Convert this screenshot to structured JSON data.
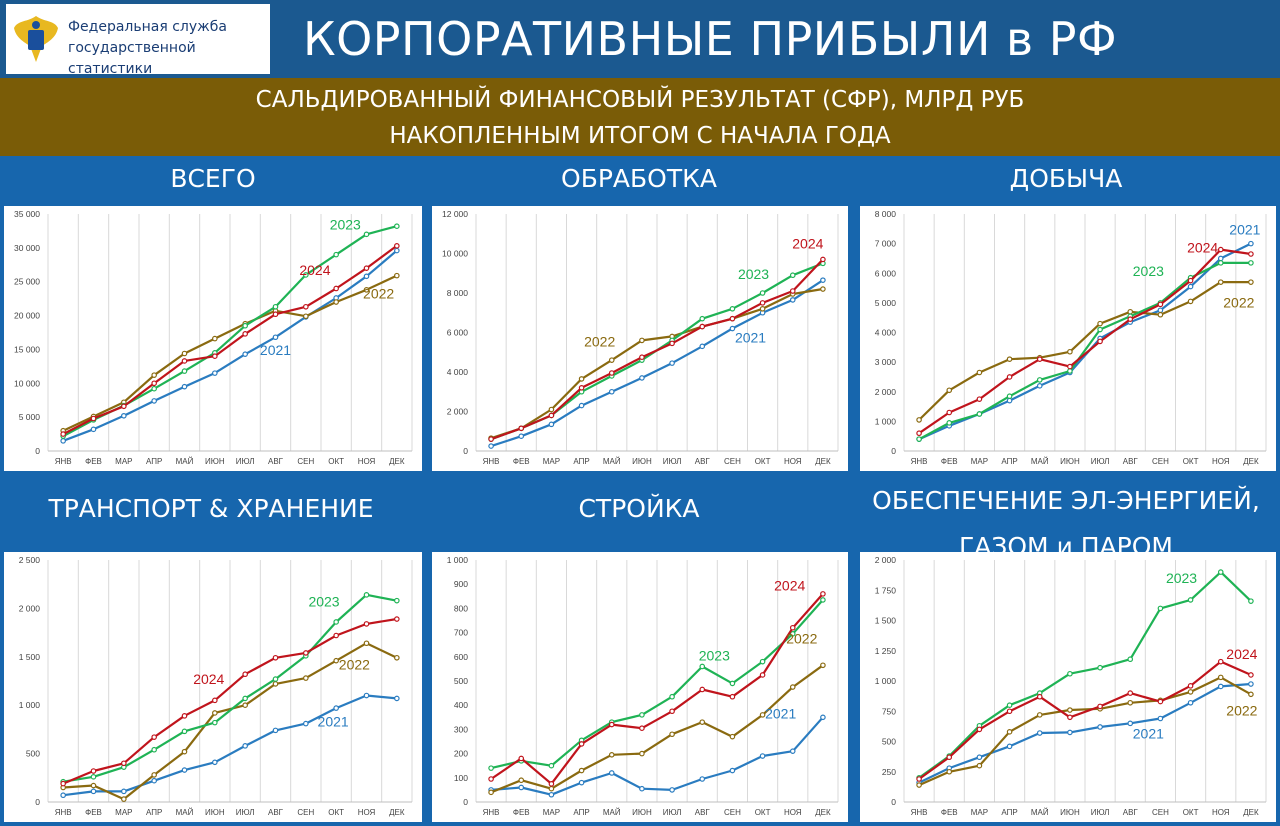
{
  "header": {
    "org_line1": "Федеральная служба",
    "org_line2": "государственной статистики",
    "title": "КОРПОРАТИВНЫЕ ПРИБЫЛИ в РФ",
    "subtitle_line1": "САЛЬДИРОВАННЫЙ ФИНАНСОВЫЙ РЕЗУЛЬТАТ (СФР), МЛРД РУБ",
    "subtitle_line2": "НАКОПЛЕННЫМ ИТОГОМ С НАЧАЛА ГОДА"
  },
  "colors": {
    "2021": "#2a7cc0",
    "2022": "#8a6a10",
    "2023": "#1fb355",
    "2024": "#c0141c"
  },
  "chart_data": [
    {
      "type": "line",
      "title_line1": "ВСЕГО",
      "title_line2": "",
      "categories": [
        "ЯНВ",
        "ФЕВ",
        "МАР",
        "АПР",
        "МАЙ",
        "ИЮН",
        "ИЮЛ",
        "АВГ",
        "СЕН",
        "ОКТ",
        "НОЯ",
        "ДЕК"
      ],
      "ylim": [
        0,
        35000
      ],
      "yticks": [
        "0",
        "5 000",
        "10 000",
        "15 000",
        "20 000",
        "25 000",
        "30 000",
        "35 000"
      ],
      "ystep": 5000,
      "series": [
        {
          "name": "2021",
          "values": [
            1500,
            3200,
            5200,
            7400,
            9500,
            11500,
            14300,
            16800,
            19800,
            22600,
            25800,
            29600
          ]
        },
        {
          "name": "2022",
          "values": [
            3000,
            5100,
            7200,
            11200,
            14400,
            16600,
            18800,
            20700,
            19900,
            22000,
            23800,
            25900
          ]
        },
        {
          "name": "2023",
          "values": [
            2200,
            4600,
            6700,
            9200,
            11800,
            14500,
            18500,
            21300,
            26000,
            29000,
            32000,
            33200
          ]
        },
        {
          "name": "2024",
          "values": [
            2500,
            4800,
            6600,
            10000,
            13300,
            14000,
            17300,
            20200,
            21300,
            24000,
            27000,
            30300
          ]
        }
      ]
    },
    {
      "type": "line",
      "title_line1": "ОБРАБОТКА",
      "title_line2": "",
      "categories": [
        "ЯНВ",
        "ФЕВ",
        "МАР",
        "АПР",
        "МАЙ",
        "ИЮН",
        "ИЮЛ",
        "АВГ",
        "СЕН",
        "ОКТ",
        "НОЯ",
        "ДЕК"
      ],
      "ylim": [
        0,
        12000
      ],
      "yticks": [
        "0",
        "2 000",
        "4 000",
        "6 000",
        "8 000",
        "10 000",
        "12 000"
      ],
      "ystep": 2000,
      "series": [
        {
          "name": "2021",
          "values": [
            250,
            750,
            1350,
            2300,
            3000,
            3700,
            4450,
            5300,
            6200,
            7000,
            7650,
            8650
          ]
        },
        {
          "name": "2022",
          "values": [
            650,
            1150,
            2100,
            3650,
            4600,
            5600,
            5800,
            6300,
            6700,
            7200,
            7950,
            8200
          ]
        },
        {
          "name": "2023",
          "values": [
            600,
            1150,
            1800,
            3000,
            3800,
            4600,
            5600,
            6700,
            7200,
            8000,
            8900,
            9500
          ]
        },
        {
          "name": "2024",
          "values": [
            600,
            1150,
            1800,
            3200,
            3950,
            4750,
            5450,
            6300,
            6700,
            7500,
            8100,
            9700
          ]
        }
      ]
    },
    {
      "type": "line",
      "title_line1": "ДОБЫЧА",
      "title_line2": "",
      "categories": [
        "ЯНВ",
        "ФЕВ",
        "МАР",
        "АПР",
        "МАЙ",
        "ИЮН",
        "ИЮЛ",
        "АВГ",
        "СЕН",
        "ОКТ",
        "НОЯ",
        "ДЕК"
      ],
      "ylim": [
        0,
        8000
      ],
      "yticks": [
        "0",
        "1 000",
        "2 000",
        "3 000",
        "4 000",
        "5 000",
        "6 000",
        "7 000",
        "8 000"
      ],
      "ystep": 1000,
      "series": [
        {
          "name": "2021",
          "values": [
            400,
            850,
            1250,
            1700,
            2200,
            2650,
            3800,
            4350,
            4750,
            5550,
            6500,
            7000
          ]
        },
        {
          "name": "2022",
          "values": [
            1050,
            2050,
            2650,
            3100,
            3150,
            3350,
            4300,
            4700,
            4600,
            5050,
            5700,
            5700
          ]
        },
        {
          "name": "2023",
          "values": [
            400,
            950,
            1250,
            1850,
            2400,
            2700,
            4100,
            4550,
            5000,
            5850,
            6350,
            6350
          ]
        },
        {
          "name": "2024",
          "values": [
            600,
            1300,
            1750,
            2500,
            3100,
            2850,
            3700,
            4450,
            4950,
            5750,
            6800,
            6650
          ]
        }
      ]
    },
    {
      "type": "line",
      "title_line1": "ТРАНСПОРТ & ХРАНЕНИЕ",
      "title_line2": "",
      "categories": [
        "ЯНВ",
        "ФЕВ",
        "МАР",
        "АПР",
        "МАЙ",
        "ИЮН",
        "ИЮЛ",
        "АВГ",
        "СЕН",
        "ОКТ",
        "НОЯ",
        "ДЕК"
      ],
      "ylim": [
        0,
        2500
      ],
      "yticks": [
        "0",
        "500",
        "1 000",
        "1 500",
        "2 000",
        "2 500"
      ],
      "ystep": 500,
      "series": [
        {
          "name": "2021",
          "values": [
            70,
            110,
            110,
            220,
            330,
            410,
            580,
            740,
            810,
            970,
            1100,
            1070
          ]
        },
        {
          "name": "2022",
          "values": [
            150,
            170,
            30,
            280,
            520,
            920,
            1000,
            1220,
            1280,
            1460,
            1640,
            1490
          ]
        },
        {
          "name": "2023",
          "values": [
            210,
            260,
            360,
            540,
            730,
            820,
            1070,
            1270,
            1510,
            1860,
            2140,
            2080
          ]
        },
        {
          "name": "2024",
          "values": [
            190,
            320,
            400,
            670,
            890,
            1050,
            1320,
            1490,
            1540,
            1720,
            1840,
            1890
          ]
        }
      ]
    },
    {
      "type": "line",
      "title_line1": "СТРОЙКА",
      "title_line2": "",
      "categories": [
        "ЯНВ",
        "ФЕВ",
        "МАР",
        "АПР",
        "МАЙ",
        "ИЮН",
        "ИЮЛ",
        "АВГ",
        "СЕН",
        "ОКТ",
        "НОЯ",
        "ДЕК"
      ],
      "ylim": [
        0,
        1000
      ],
      "yticks": [
        "0",
        "100",
        "200",
        "300",
        "400",
        "500",
        "600",
        "700",
        "800",
        "900",
        "1 000"
      ],
      "ystep": 100,
      "series": [
        {
          "name": "2021",
          "values": [
            50,
            60,
            30,
            80,
            120,
            55,
            50,
            95,
            130,
            190,
            210,
            350
          ]
        },
        {
          "name": "2022",
          "values": [
            40,
            90,
            55,
            130,
            195,
            200,
            280,
            330,
            270,
            360,
            475,
            565
          ]
        },
        {
          "name": "2023",
          "values": [
            140,
            170,
            150,
            255,
            330,
            360,
            435,
            560,
            490,
            580,
            695,
            835
          ]
        },
        {
          "name": "2024",
          "values": [
            95,
            180,
            75,
            240,
            320,
            305,
            375,
            465,
            435,
            525,
            720,
            860
          ]
        }
      ]
    },
    {
      "type": "line",
      "title_line1": "ОБЕСПЕЧЕНИЕ ЭЛ-ЭНЕРГИЕЙ,",
      "title_line2": "ГАЗОМ и ПАРОМ",
      "categories": [
        "ЯНВ",
        "ФЕВ",
        "МАР",
        "АПР",
        "МАЙ",
        "ИЮН",
        "ИЮЛ",
        "АВГ",
        "СЕН",
        "ОКТ",
        "НОЯ",
        "ДЕК"
      ],
      "ylim": [
        0,
        2000
      ],
      "yticks": [
        "0",
        "250",
        "500",
        "750",
        "1 000",
        "1 250",
        "1 500",
        "1 750",
        "2 000"
      ],
      "ystep": 250,
      "series": [
        {
          "name": "2021",
          "values": [
            160,
            280,
            370,
            460,
            570,
            575,
            620,
            650,
            690,
            820,
            955,
            975
          ]
        },
        {
          "name": "2022",
          "values": [
            140,
            250,
            300,
            580,
            720,
            760,
            770,
            820,
            840,
            910,
            1030,
            890
          ]
        },
        {
          "name": "2023",
          "values": [
            200,
            380,
            630,
            800,
            900,
            1060,
            1110,
            1180,
            1600,
            1670,
            1900,
            1660
          ]
        },
        {
          "name": "2024",
          "values": [
            190,
            370,
            600,
            750,
            870,
            700,
            790,
            900,
            830,
            960,
            1160,
            1050
          ]
        }
      ]
    }
  ],
  "labels": [
    [
      {
        "t": "2023",
        "s": "2023",
        "x": 9.3,
        "y": 32700
      },
      {
        "t": "2024",
        "s": "2024",
        "x": 8.3,
        "y": 26000
      },
      {
        "t": "2022",
        "s": "2022",
        "x": 10.4,
        "y": 22500
      },
      {
        "t": "2021",
        "s": "2021",
        "x": 7.0,
        "y": 14200
      }
    ],
    [
      {
        "t": "2024",
        "s": "2024",
        "x": 10.5,
        "y": 10250
      },
      {
        "t": "2023",
        "s": "2023",
        "x": 8.7,
        "y": 8700
      },
      {
        "t": "2022",
        "s": "2022",
        "x": 3.6,
        "y": 5300
      },
      {
        "t": "2021",
        "s": "2021",
        "x": 8.6,
        "y": 5500
      }
    ],
    [
      {
        "t": "2021",
        "s": "2021",
        "x": 10.8,
        "y": 7300
      },
      {
        "t": "2024",
        "s": "2024",
        "x": 9.4,
        "y": 6700
      },
      {
        "t": "2023",
        "s": "2023",
        "x": 7.6,
        "y": 5900
      },
      {
        "t": "2022",
        "s": "2022",
        "x": 10.6,
        "y": 4850
      }
    ],
    [
      {
        "t": "2023",
        "s": "2023",
        "x": 8.6,
        "y": 2020
      },
      {
        "t": "2024",
        "s": "2024",
        "x": 4.8,
        "y": 1220
      },
      {
        "t": "2022",
        "s": "2022",
        "x": 9.6,
        "y": 1370
      },
      {
        "t": "2021",
        "s": "2021",
        "x": 8.9,
        "y": 780
      }
    ],
    [
      {
        "t": "2024",
        "s": "2024",
        "x": 9.9,
        "y": 875
      },
      {
        "t": "2022",
        "s": "2022",
        "x": 10.3,
        "y": 655
      },
      {
        "t": "2023",
        "s": "2023",
        "x": 7.4,
        "y": 585
      },
      {
        "t": "2021",
        "s": "2021",
        "x": 9.6,
        "y": 345
      }
    ],
    [
      {
        "t": "2023",
        "s": "2023",
        "x": 8.7,
        "y": 1810
      },
      {
        "t": "2024",
        "s": "2024",
        "x": 10.7,
        "y": 1180
      },
      {
        "t": "2022",
        "s": "2022",
        "x": 10.7,
        "y": 715
      },
      {
        "t": "2021",
        "s": "2021",
        "x": 7.6,
        "y": 525
      }
    ]
  ]
}
